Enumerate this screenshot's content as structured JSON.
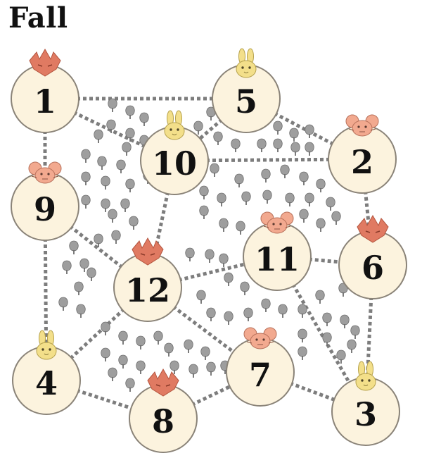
{
  "title": "Fall",
  "colors": {
    "node_fill": "#fcf3de",
    "node_stroke": "#8a8378",
    "path": "#7d7d7d",
    "tree": "#9e9e9e",
    "fox": "#e07a62",
    "mouse": "#f2a98f",
    "rabbit": "#f3df8a"
  },
  "nodes": [
    {
      "id": "1",
      "label": "1",
      "animal": "fox"
    },
    {
      "id": "2",
      "label": "2",
      "animal": "mouse"
    },
    {
      "id": "3",
      "label": "3",
      "animal": "rabbit"
    },
    {
      "id": "4",
      "label": "4",
      "animal": "rabbit"
    },
    {
      "id": "5",
      "label": "5",
      "animal": "rabbit"
    },
    {
      "id": "6",
      "label": "6",
      "animal": "fox"
    },
    {
      "id": "7",
      "label": "7",
      "animal": "mouse"
    },
    {
      "id": "8",
      "label": "8",
      "animal": "fox"
    },
    {
      "id": "9",
      "label": "9",
      "animal": "mouse"
    },
    {
      "id": "10",
      "label": "10",
      "animal": "rabbit"
    },
    {
      "id": "11",
      "label": "11",
      "animal": "mouse"
    },
    {
      "id": "12",
      "label": "12",
      "animal": "fox"
    }
  ],
  "edges": [
    [
      "1",
      "5"
    ],
    [
      "1",
      "10"
    ],
    [
      "1",
      "9"
    ],
    [
      "5",
      "2"
    ],
    [
      "5",
      "10"
    ],
    [
      "10",
      "2"
    ],
    [
      "10",
      "12"
    ],
    [
      "2",
      "6"
    ],
    [
      "9",
      "12"
    ],
    [
      "9",
      "4"
    ],
    [
      "12",
      "11"
    ],
    [
      "12",
      "4"
    ],
    [
      "12",
      "7"
    ],
    [
      "11",
      "6"
    ],
    [
      "11",
      "3"
    ],
    [
      "6",
      "3"
    ],
    [
      "4",
      "8"
    ],
    [
      "8",
      "7"
    ],
    [
      "7",
      "3"
    ]
  ]
}
